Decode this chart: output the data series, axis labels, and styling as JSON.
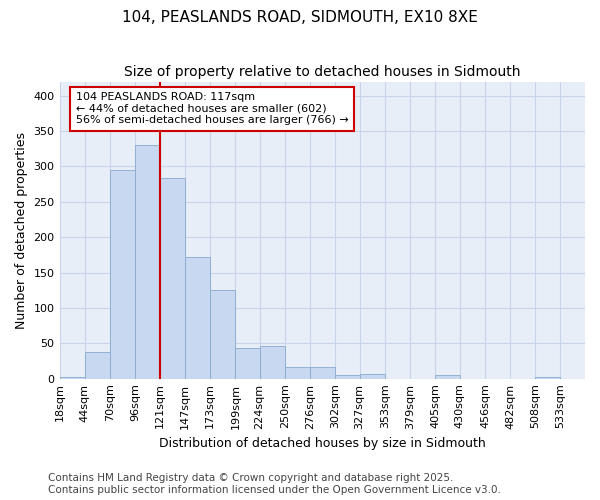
{
  "title": "104, PEASLANDS ROAD, SIDMOUTH, EX10 8XE",
  "subtitle": "Size of property relative to detached houses in Sidmouth",
  "xlabel": "Distribution of detached houses by size in Sidmouth",
  "ylabel": "Number of detached properties",
  "bin_labels": [
    "18sqm",
    "44sqm",
    "70sqm",
    "96sqm",
    "121sqm",
    "147sqm",
    "173sqm",
    "199sqm",
    "224sqm",
    "250sqm",
    "276sqm",
    "302sqm",
    "327sqm",
    "353sqm",
    "379sqm",
    "405sqm",
    "430sqm",
    "456sqm",
    "482sqm",
    "508sqm",
    "533sqm"
  ],
  "bin_edges": [
    18,
    44,
    70,
    96,
    121,
    147,
    173,
    199,
    224,
    250,
    276,
    302,
    327,
    353,
    379,
    405,
    430,
    456,
    482,
    508,
    533
  ],
  "bar_heights": [
    2,
    38,
    295,
    330,
    283,
    172,
    125,
    43,
    46,
    16,
    16,
    5,
    6,
    0,
    0,
    5,
    0,
    0,
    0,
    2,
    0
  ],
  "bar_color": "#c8d8f0",
  "bar_edge_color": "#88aacc",
  "vline_x": 121,
  "vline_color": "#cc0000",
  "annotation_text": "104 PEASLANDS ROAD: 117sqm\n← 44% of detached houses are smaller (602)\n56% of semi-detached houses are larger (766) →",
  "annotation_box_color": "#ffffff",
  "annotation_box_edge": "#cc0000",
  "ylim": [
    0,
    420
  ],
  "xlim_min": 18,
  "xlim_max": 559,
  "background_color": "#ffffff",
  "plot_bg_color": "#e8eef8",
  "grid_color": "#c8d4e8",
  "footer_text": "Contains HM Land Registry data © Crown copyright and database right 2025.\nContains public sector information licensed under the Open Government Licence v3.0.",
  "title_fontsize": 11,
  "subtitle_fontsize": 10,
  "axis_label_fontsize": 9,
  "tick_fontsize": 8,
  "annotation_fontsize": 8,
  "footer_fontsize": 7.5
}
